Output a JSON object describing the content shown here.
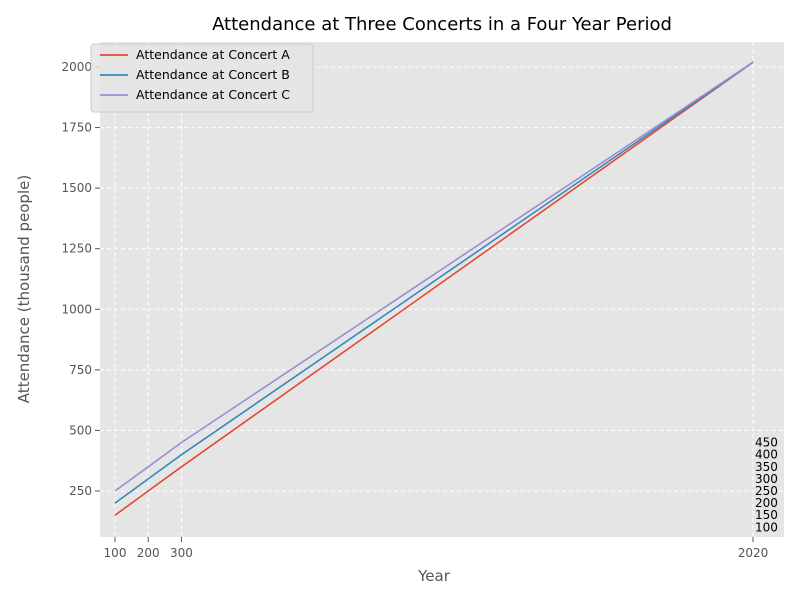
{
  "chart_data": {
    "type": "line",
    "title": "Attendance at Three Concerts in a Four Year Period",
    "xlabel": "Year",
    "ylabel": "Attendance (thousand people)",
    "xlim": [
      100,
      2020
    ],
    "ylim": [
      50,
      2100
    ],
    "x_ticks": [
      100,
      200,
      300,
      2020
    ],
    "y_ticks": [
      250,
      500,
      750,
      1000,
      1250,
      1500,
      1750,
      2000
    ],
    "grid": true,
    "legend_position": "top-left",
    "series": [
      {
        "name": "Attendance at Concert A",
        "color": "#E24A33",
        "points": [
          [
            100,
            150
          ],
          [
            200,
            250
          ],
          [
            300,
            350
          ],
          [
            2020,
            2020
          ]
        ]
      },
      {
        "name": "Attendance at Concert B",
        "color": "#348ABD",
        "points": [
          [
            100,
            200
          ],
          [
            200,
            300
          ],
          [
            300,
            400
          ],
          [
            2020,
            2020
          ]
        ]
      },
      {
        "name": "Attendance at Concert C",
        "color": "#988ED5",
        "points": [
          [
            100,
            250
          ],
          [
            200,
            350
          ],
          [
            300,
            450
          ],
          [
            2020,
            2020
          ]
        ]
      }
    ],
    "annotations": [
      "450",
      "400",
      "350",
      "300",
      "250",
      "200",
      "150",
      "100"
    ]
  }
}
